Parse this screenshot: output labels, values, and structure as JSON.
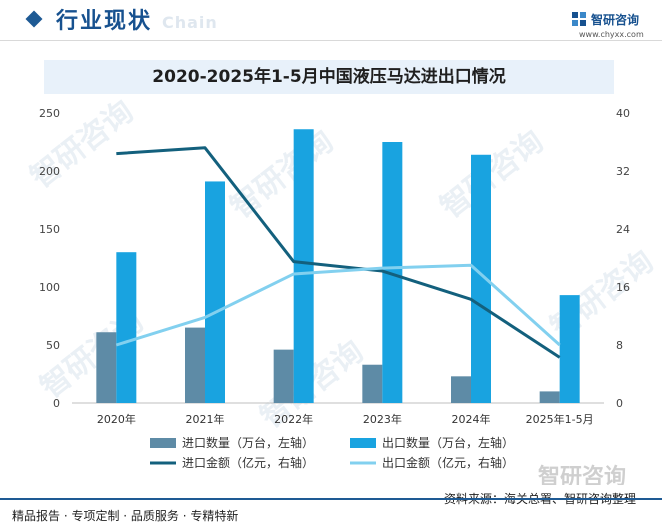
{
  "header": {
    "title": "行业现状",
    "subtitle_en": "Chain",
    "brand_name": "智研咨询",
    "brand_url": "www.chyxx.com"
  },
  "watermark_text": "智研咨询",
  "chart_data": {
    "type": "bar",
    "title": "2020-2025年1-5月中国液压马达进出口情况",
    "categories": [
      "2020年",
      "2021年",
      "2022年",
      "2023年",
      "2024年",
      "2025年1-5月"
    ],
    "left_axis": {
      "min": 0,
      "max": 250,
      "ticks": [
        0,
        50,
        100,
        150,
        200,
        250
      ]
    },
    "right_axis": {
      "min": 0,
      "max": 40,
      "ticks": [
        0,
        8,
        16,
        24,
        32,
        40
      ]
    },
    "series": [
      {
        "name": "进口数量（万台，左轴）",
        "type": "bar",
        "axis": "left",
        "color": "#5e8ba6",
        "values": [
          61,
          65,
          46,
          33,
          23,
          10
        ]
      },
      {
        "name": "出口数量（万台，左轴）",
        "type": "bar",
        "axis": "left",
        "color": "#19a3e0",
        "values": [
          130,
          191,
          236,
          225,
          214,
          93
        ]
      },
      {
        "name": "进口金额（亿元，右轴）",
        "type": "line",
        "axis": "right",
        "color": "#13607d",
        "values": [
          34.4,
          35.2,
          19.5,
          18.2,
          14.3,
          6.3
        ]
      },
      {
        "name": "出口金额（亿元，右轴）",
        "type": "line",
        "axis": "right",
        "color": "#82d0ef",
        "values": [
          8.0,
          11.8,
          17.8,
          18.6,
          19.0,
          8.0
        ]
      }
    ]
  },
  "footer": {
    "left": "精品报告 · 专项定制 · 品质服务 · 专精特新",
    "source": "资料来源：海关总署、智研咨询整理",
    "brand": "智研咨询"
  }
}
